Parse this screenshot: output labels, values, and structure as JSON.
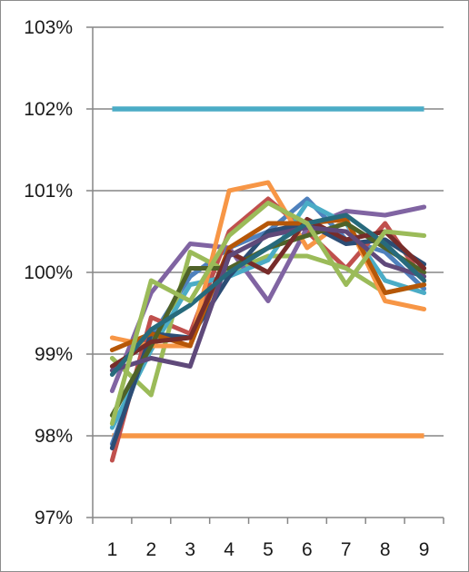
{
  "chart_data": {
    "type": "line",
    "title": "",
    "xlabel": "",
    "ylabel": "",
    "categories": [
      "1",
      "2",
      "3",
      "4",
      "5",
      "6",
      "7",
      "8",
      "9"
    ],
    "y_ticks": [
      "97%",
      "98%",
      "99%",
      "100%",
      "101%",
      "102%",
      "103%"
    ],
    "ylim": [
      97,
      103
    ],
    "grid": true,
    "legend": "none",
    "reference_lines": [
      {
        "value": 102,
        "color": "#4BACC6"
      },
      {
        "value": 98,
        "color": "#F79646"
      }
    ],
    "series": [
      {
        "color": "#4F81BD",
        "values": [
          97.9,
          99.2,
          99.95,
          100.3,
          100.5,
          100.9,
          100.4,
          100.25,
          99.8
        ]
      },
      {
        "color": "#C0504D",
        "values": [
          97.7,
          99.45,
          99.25,
          100.5,
          100.9,
          100.5,
          100.05,
          100.6,
          99.9
        ]
      },
      {
        "color": "#9BBB59",
        "values": [
          98.95,
          98.5,
          100.25,
          100.0,
          100.2,
          100.2,
          100.05,
          99.75,
          99.85
        ]
      },
      {
        "color": "#8064A2",
        "values": [
          98.55,
          99.75,
          100.35,
          100.3,
          99.65,
          100.55,
          100.75,
          100.7,
          100.8
        ]
      },
      {
        "color": "#4BACC6",
        "values": [
          98.1,
          99.05,
          99.85,
          99.95,
          100.15,
          100.85,
          100.6,
          99.9,
          99.75
        ]
      },
      {
        "color": "#F79646",
        "values": [
          99.2,
          99.1,
          99.1,
          101.0,
          101.1,
          100.3,
          100.65,
          99.65,
          99.55
        ]
      },
      {
        "color": "#2C4D75",
        "values": [
          97.85,
          99.25,
          99.2,
          99.95,
          100.5,
          100.6,
          100.35,
          100.4,
          100.1
        ]
      },
      {
        "color": "#B65708",
        "values": [
          99.05,
          99.25,
          99.1,
          100.3,
          100.6,
          100.6,
          100.65,
          99.75,
          99.85
        ]
      },
      {
        "color": "#4F6228",
        "values": [
          98.25,
          99.1,
          100.05,
          100.05,
          100.3,
          100.45,
          100.6,
          100.3,
          100.0
        ]
      },
      {
        "color": "#772C2A",
        "values": [
          98.85,
          99.15,
          99.2,
          100.25,
          100.0,
          100.65,
          100.4,
          100.5,
          100.05
        ]
      },
      {
        "color": "#5F497A",
        "values": [
          98.8,
          98.95,
          98.85,
          100.2,
          100.45,
          100.55,
          100.5,
          100.1,
          99.95
        ]
      },
      {
        "color": "#276A7C",
        "values": [
          98.75,
          99.3,
          99.6,
          100.0,
          100.3,
          100.6,
          100.7,
          100.35,
          99.9
        ]
      },
      {
        "color": "#9BBB59",
        "values": [
          98.15,
          99.9,
          99.65,
          100.45,
          100.85,
          100.6,
          99.85,
          100.5,
          100.45
        ]
      }
    ]
  }
}
